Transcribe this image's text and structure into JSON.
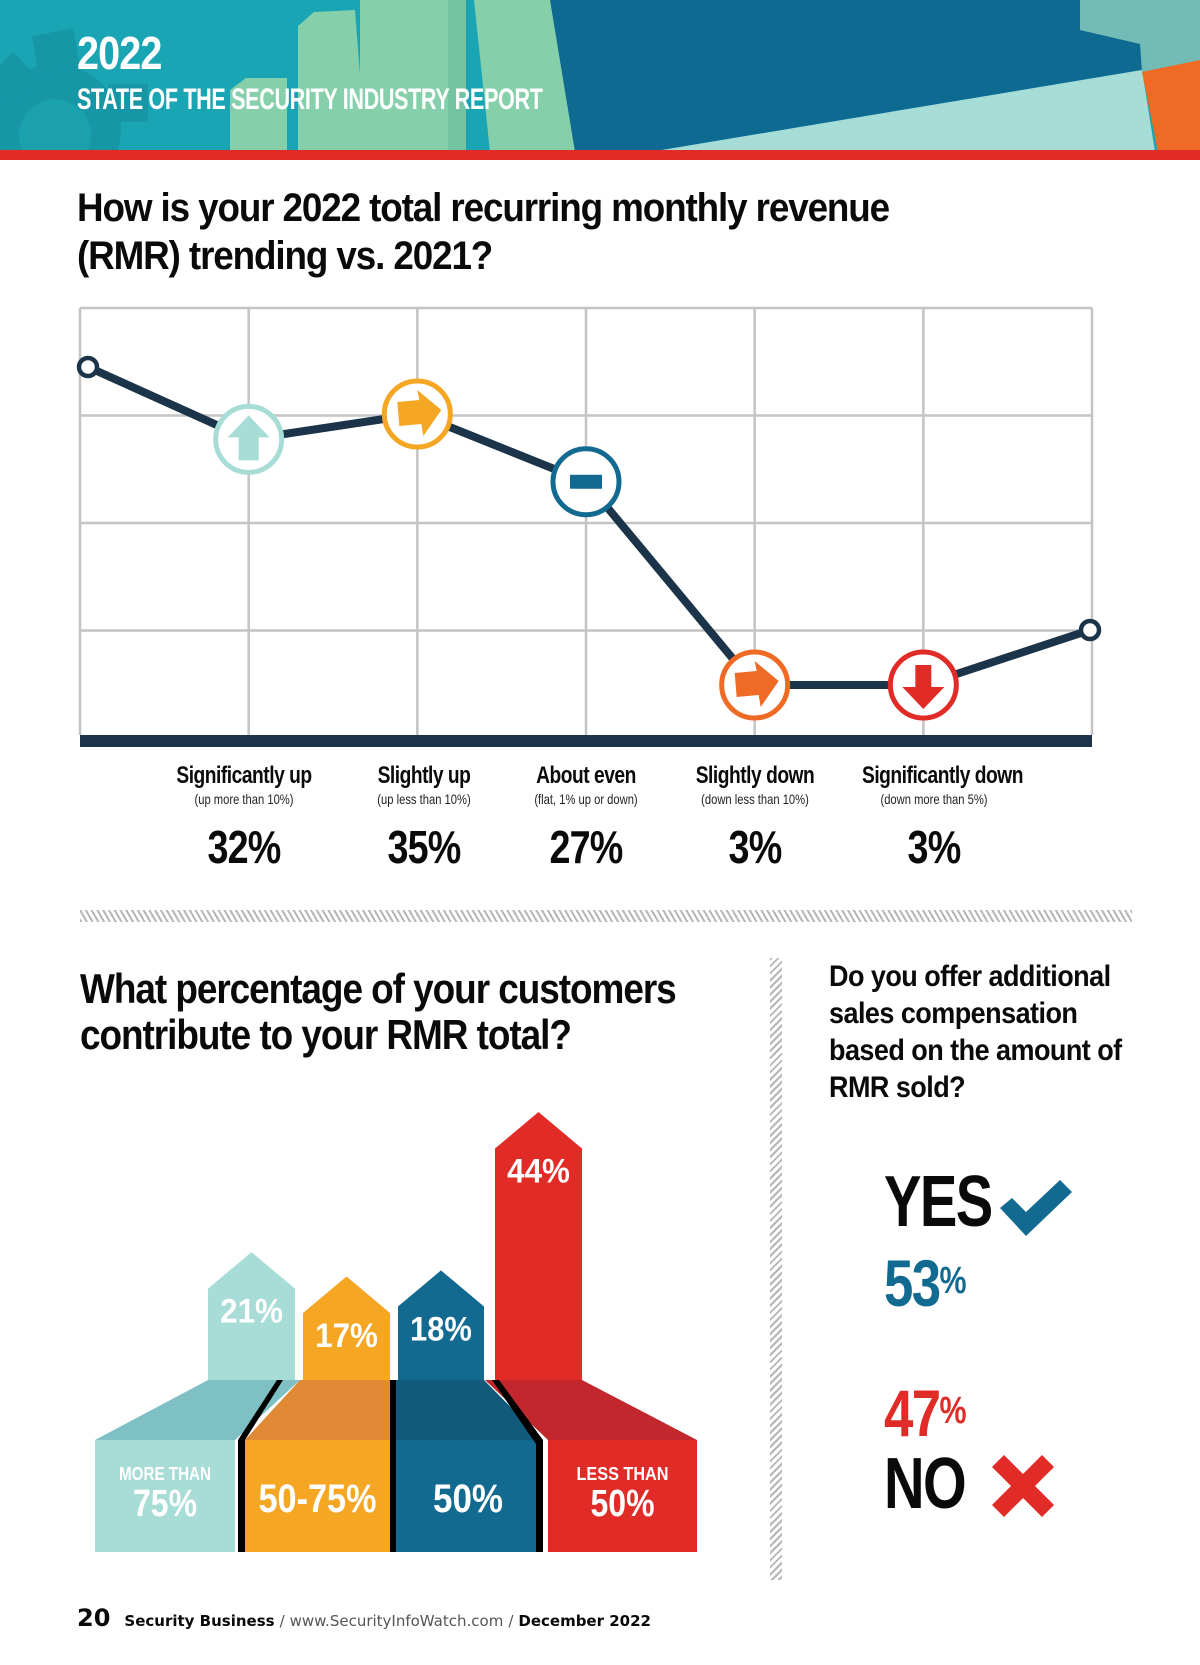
{
  "header": {
    "year": "2022",
    "report_title": "STATE OF THE SECURITY INDUSTRY REPORT",
    "colors": {
      "teal": "#1aa5b4",
      "dark_blue": "#0f6a91",
      "mint": "#86cfab",
      "light_teal": "#a8dcd7",
      "orange": "#ef6a24",
      "red_stripe": "#e12b27"
    }
  },
  "question1": {
    "title": "How is your 2022 total recurring monthly revenue (RMR) trending vs. 2021?"
  },
  "chart_data": [
    {
      "type": "line",
      "title": "How is your 2022 total recurring monthly revenue (RMR) trending vs. 2021?",
      "xlabel": "",
      "ylabel": "",
      "grid": true,
      "categories": [
        "Significantly up",
        "Slightly up",
        "About even",
        "Slightly down",
        "Significantly down"
      ],
      "notes": [
        "(up more than 10%)",
        "(up less than 10%)",
        "(flat, 1% up or down)",
        "(down less than 10%)",
        "(down more than 5%)"
      ],
      "values": [
        32,
        35,
        27,
        3,
        3
      ],
      "value_labels": [
        "32%",
        "35%",
        "27%",
        "3%",
        "3%"
      ],
      "marker_icons": [
        "arrow-up-icon",
        "arrow-right-icon",
        "minus-icon",
        "arrow-right-icon",
        "arrow-down-icon"
      ],
      "marker_colors": [
        "#a8dcd7",
        "#f5a623",
        "#136a91",
        "#ef6a24",
        "#e12b27"
      ],
      "line_color": "#1b3449"
    },
    {
      "type": "bar",
      "title": "What percentage of your customers contribute to your RMR total?",
      "categories": [
        "MORE THAN 75%",
        "50-75%",
        "50%",
        "LESS THAN 50%"
      ],
      "category_prefix": [
        "MORE THAN",
        "",
        "",
        "LESS THAN"
      ],
      "category_main": [
        "75%",
        "50-75%",
        "50%",
        "50%"
      ],
      "values": [
        21,
        17,
        18,
        44
      ],
      "value_labels": [
        "21%",
        "17%",
        "18%",
        "44%"
      ],
      "colors": [
        "#a8dcd7",
        "#f5a623",
        "#136a91",
        "#e12b27"
      ],
      "shade_colors": [
        "#7fc0c4",
        "#e08a35",
        "#115a7c",
        "#c1272d"
      ]
    },
    {
      "type": "table",
      "title": "Do you offer additional sales compensation based on the amount of RMR sold?",
      "categories": [
        "YES",
        "NO"
      ],
      "values": [
        53,
        47
      ],
      "colors": [
        "#136a91",
        "#e12b27"
      ]
    }
  ],
  "question2": {
    "title": "What percentage of your customers contribute to your RMR total?"
  },
  "question3": {
    "title": "Do you offer additional sales compensation based on the amount of RMR sold?",
    "yes_label": "YES",
    "yes_value": "53",
    "no_label": "NO",
    "no_value": "47",
    "pct": "%"
  },
  "footer": {
    "page_number": "20",
    "publication": "Security Business",
    "separator": "/",
    "url": "www.SecurityInfoWatch.com",
    "date": "December 2022"
  }
}
